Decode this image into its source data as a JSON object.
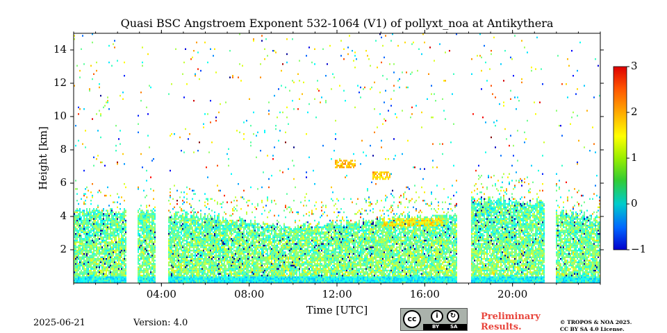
{
  "chart_data": {
    "type": "heatmap",
    "title": "Quasi BSC Angstroem Exponent 532-1064 (V1) of pollyxt_noa at Antikythera",
    "xlabel": "Time [UTC]",
    "ylabel": "Height [km]",
    "x_unit": "hours",
    "xlim": [
      0,
      24
    ],
    "ylim": [
      0,
      15
    ],
    "x_ticks": [
      {
        "value": 4,
        "label": "04:00"
      },
      {
        "value": 8,
        "label": "08:00"
      },
      {
        "value": 12,
        "label": "12:00"
      },
      {
        "value": 16,
        "label": "16:00"
      },
      {
        "value": 20,
        "label": "20:00"
      }
    ],
    "y_ticks": [
      {
        "value": 2,
        "label": "2"
      },
      {
        "value": 4,
        "label": "4"
      },
      {
        "value": 6,
        "label": "6"
      },
      {
        "value": 8,
        "label": "8"
      },
      {
        "value": 10,
        "label": "10"
      },
      {
        "value": 12,
        "label": "12"
      },
      {
        "value": 14,
        "label": "14"
      }
    ],
    "colorbar": {
      "min": -1,
      "max": 3,
      "ticks": [
        {
          "value": -1,
          "label": "−1"
        },
        {
          "value": 0,
          "label": "0"
        },
        {
          "value": 1,
          "label": "1"
        },
        {
          "value": 2,
          "label": "2"
        },
        {
          "value": 3,
          "label": "3"
        }
      ],
      "colormap": "jet"
    },
    "data_gaps_hours": [
      [
        2.35,
        2.85
      ],
      [
        3.7,
        4.3
      ],
      [
        17.45,
        18.05
      ],
      [
        21.45,
        21.95
      ]
    ],
    "aerosol_layer_top_km": [
      {
        "x": 0,
        "top": 4.3
      },
      {
        "x": 2.35,
        "top": 4.3
      },
      {
        "x": 2.85,
        "top": 4.3
      },
      {
        "x": 6,
        "top": 4.0
      },
      {
        "x": 10,
        "top": 3.3
      },
      {
        "x": 14,
        "top": 3.8
      },
      {
        "x": 17.45,
        "top": 4.0
      },
      {
        "x": 18.05,
        "top": 5.0
      },
      {
        "x": 21.45,
        "top": 4.8
      },
      {
        "x": 21.95,
        "top": 4.3
      },
      {
        "x": 24,
        "top": 3.8
      }
    ],
    "elevated_features": [
      {
        "x_start": 11.9,
        "x_end": 12.8,
        "height_km": 7.1,
        "value": 1.8
      },
      {
        "x_start": 13.6,
        "x_end": 14.4,
        "height_km": 6.4,
        "value": 1.7
      },
      {
        "x_start": 14.0,
        "x_end": 16.8,
        "height_km": 3.6,
        "value": 1.6
      }
    ]
  },
  "footer": {
    "date": "2025-06-21",
    "version": "Version: 4.0",
    "license_badge": {
      "cc": "cc",
      "by": "BY",
      "sa": "SA"
    },
    "preliminary_line1": "Preliminary",
    "preliminary_line2": "Results.",
    "copyright_line1": "© TROPOS & NOA 2025.",
    "copyright_line2": "CC BY SA 4.0 License."
  }
}
